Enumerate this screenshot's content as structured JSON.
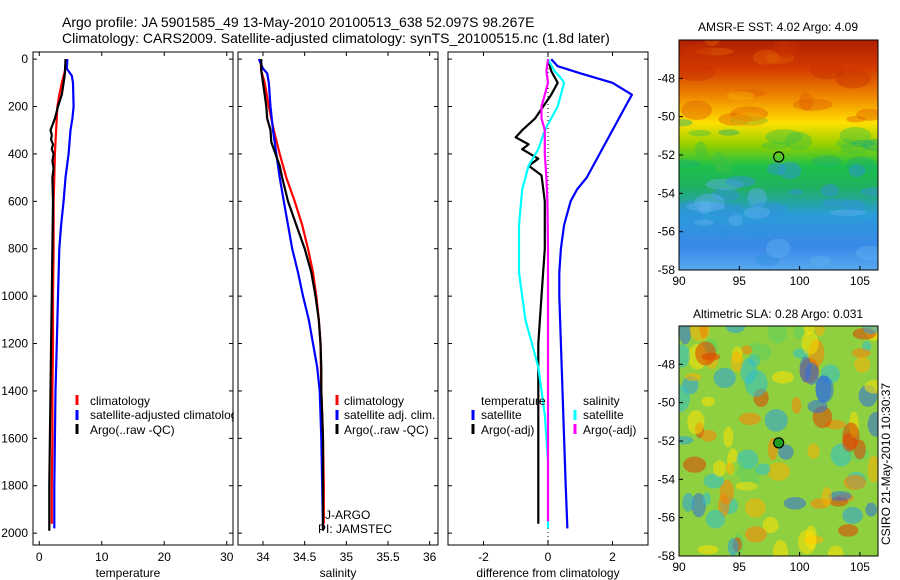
{
  "header": {
    "line1": "Argo profile: JA 5901585_49 13-May-2010 20100513_638 52.097S 98.267E",
    "line2": "Climatology: CARS2009. Satellite-adjusted climatology: synTS_20100515.nc (1.8d later)"
  },
  "colors": {
    "red": "#ff0000",
    "blue": "#0000ff",
    "black": "#000000",
    "cyan": "#00ffff",
    "magenta": "#ff00ff"
  },
  "chart_data": [
    {
      "type": "line",
      "name": "temperature-profile",
      "xlabel": "temperature",
      "ylabel": "",
      "xlim": [
        -1,
        31
      ],
      "ylim": [
        2050,
        -30
      ],
      "xticks": [
        0,
        10,
        20,
        30
      ],
      "yticks": [
        0,
        200,
        400,
        600,
        800,
        1000,
        1200,
        1400,
        1600,
        1800,
        2000
      ],
      "legend": [
        "climatology",
        "satellite-adjusted climatolog",
        "Argo(..raw -QC)"
      ],
      "series": [
        {
          "name": "climatology",
          "color": "red",
          "points": [
            [
              4.3,
              0
            ],
            [
              4.1,
              50
            ],
            [
              3.6,
              100
            ],
            [
              3.2,
              150
            ],
            [
              2.9,
              200
            ],
            [
              2.7,
              300
            ],
            [
              2.5,
              400
            ],
            [
              2.4,
              500
            ],
            [
              2.3,
              600
            ],
            [
              2.3,
              800
            ],
            [
              2.2,
              1000
            ],
            [
              2.2,
              1200
            ],
            [
              2.1,
              1400
            ],
            [
              2.1,
              1600
            ],
            [
              2.0,
              1800
            ],
            [
              2.0,
              1960
            ]
          ]
        },
        {
          "name": "satellite-adjusted climatology",
          "color": "blue",
          "points": [
            [
              4.5,
              0
            ],
            [
              4.4,
              40
            ],
            [
              5.2,
              70
            ],
            [
              5.4,
              100
            ],
            [
              5.5,
              200
            ],
            [
              5.3,
              250
            ],
            [
              5.0,
              300
            ],
            [
              4.7,
              400
            ],
            [
              4.2,
              500
            ],
            [
              3.9,
              600
            ],
            [
              3.5,
              700
            ],
            [
              3.2,
              800
            ],
            [
              3.0,
              1000
            ],
            [
              2.8,
              1200
            ],
            [
              2.6,
              1400
            ],
            [
              2.5,
              1600
            ],
            [
              2.4,
              1800
            ],
            [
              2.4,
              1980
            ]
          ]
        },
        {
          "name": "Argo(..raw -QC)",
          "color": "black",
          "points": [
            [
              4.2,
              0
            ],
            [
              4.1,
              60
            ],
            [
              3.9,
              100
            ],
            [
              3.6,
              150
            ],
            [
              3.0,
              200
            ],
            [
              2.5,
              250
            ],
            [
              1.8,
              300
            ],
            [
              2.0,
              320
            ],
            [
              1.9,
              340
            ],
            [
              2.2,
              360
            ],
            [
              2.0,
              380
            ],
            [
              2.3,
              400
            ],
            [
              2.1,
              430
            ],
            [
              2.3,
              460
            ],
            [
              2.1,
              500
            ],
            [
              2.2,
              600
            ],
            [
              2.1,
              800
            ],
            [
              2.0,
              1000
            ],
            [
              1.9,
              1200
            ],
            [
              1.8,
              1400
            ],
            [
              1.7,
              1600
            ],
            [
              1.6,
              1800
            ],
            [
              1.6,
              1990
            ]
          ]
        }
      ]
    },
    {
      "type": "line",
      "name": "salinity-profile",
      "xlabel": "salinity",
      "ylabel": "",
      "xlim": [
        33.7,
        36.1
      ],
      "ylim": [
        2050,
        -30
      ],
      "xticks": [
        34,
        34.5,
        35,
        35.5,
        36
      ],
      "legend": [
        "climatology",
        "satellite adj. clim.",
        "Argo(..raw -QC)"
      ],
      "annotation": [
        "J-ARGO",
        "PI: JAMSTEC"
      ],
      "series": [
        {
          "name": "climatology",
          "color": "red",
          "points": [
            [
              33.97,
              0
            ],
            [
              33.98,
              50
            ],
            [
              34.02,
              100
            ],
            [
              34.07,
              200
            ],
            [
              34.13,
              300
            ],
            [
              34.2,
              400
            ],
            [
              34.28,
              500
            ],
            [
              34.38,
              600
            ],
            [
              34.47,
              700
            ],
            [
              34.54,
              800
            ],
            [
              34.6,
              900
            ],
            [
              34.64,
              1000
            ],
            [
              34.67,
              1100
            ],
            [
              34.69,
              1200
            ],
            [
              34.7,
              1400
            ],
            [
              34.72,
              1600
            ],
            [
              34.73,
              1800
            ],
            [
              34.73,
              1960
            ]
          ]
        },
        {
          "name": "satellite adj. clim.",
          "color": "blue",
          "points": [
            [
              33.95,
              0
            ],
            [
              34.0,
              40
            ],
            [
              34.05,
              60
            ],
            [
              34.07,
              100
            ],
            [
              34.09,
              200
            ],
            [
              34.12,
              300
            ],
            [
              34.16,
              400
            ],
            [
              34.2,
              500
            ],
            [
              34.25,
              600
            ],
            [
              34.3,
              700
            ],
            [
              34.35,
              800
            ],
            [
              34.42,
              900
            ],
            [
              34.48,
              1000
            ],
            [
              34.55,
              1100
            ],
            [
              34.6,
              1200
            ],
            [
              34.65,
              1300
            ],
            [
              34.68,
              1400
            ],
            [
              34.7,
              1600
            ],
            [
              34.71,
              1800
            ],
            [
              34.72,
              1980
            ]
          ]
        },
        {
          "name": "Argo(..raw -QC)",
          "color": "black",
          "points": [
            [
              33.98,
              0
            ],
            [
              33.98,
              50
            ],
            [
              34.0,
              100
            ],
            [
              34.02,
              150
            ],
            [
              34.04,
              200
            ],
            [
              34.05,
              250
            ],
            [
              34.09,
              300
            ],
            [
              34.1,
              350
            ],
            [
              34.15,
              400
            ],
            [
              34.2,
              450
            ],
            [
              34.23,
              500
            ],
            [
              34.3,
              600
            ],
            [
              34.4,
              700
            ],
            [
              34.5,
              800
            ],
            [
              34.58,
              900
            ],
            [
              34.63,
              1000
            ],
            [
              34.67,
              1100
            ],
            [
              34.69,
              1200
            ],
            [
              34.7,
              1300
            ],
            [
              34.7,
              1400
            ],
            [
              34.71,
              1500
            ],
            [
              34.72,
              1600
            ],
            [
              34.72,
              1700
            ],
            [
              34.72,
              1800
            ],
            [
              34.72,
              1900
            ],
            [
              34.72,
              1990
            ]
          ]
        }
      ]
    },
    {
      "type": "line",
      "name": "difference-profile",
      "xlabel": "difference from climatology",
      "ylabel": "",
      "xlim": [
        -3.1,
        3.1
      ],
      "ylim": [
        2050,
        -30
      ],
      "xticks": [
        -2,
        0,
        2
      ],
      "legend_left_title": "temperature",
      "legend_right_title": "salinity",
      "legend_left": [
        "satellite",
        "Argo(-adj)"
      ],
      "legend_right": [
        "satellite",
        "Argo(-adj)"
      ],
      "series": [
        {
          "name": "temperature satellite",
          "color": "blue",
          "points": [
            [
              0.1,
              0
            ],
            [
              0.3,
              30
            ],
            [
              1.0,
              60
            ],
            [
              2.0,
              100
            ],
            [
              2.6,
              150
            ],
            [
              2.4,
              200
            ],
            [
              2.0,
              300
            ],
            [
              1.6,
              400
            ],
            [
              1.2,
              500
            ],
            [
              0.9,
              550
            ],
            [
              0.7,
              600
            ],
            [
              0.5,
              700
            ],
            [
              0.4,
              800
            ],
            [
              0.35,
              900
            ],
            [
              0.35,
              1000
            ],
            [
              0.4,
              1200
            ],
            [
              0.45,
              1400
            ],
            [
              0.5,
              1600
            ],
            [
              0.55,
              1800
            ],
            [
              0.6,
              1980
            ]
          ]
        },
        {
          "name": "temperature Argo(-adj)",
          "color": "black",
          "points": [
            [
              0.0,
              0
            ],
            [
              0.1,
              50
            ],
            [
              0.3,
              100
            ],
            [
              0.1,
              150
            ],
            [
              -0.4,
              250
            ],
            [
              -0.8,
              300
            ],
            [
              -1.0,
              330
            ],
            [
              -0.6,
              360
            ],
            [
              -0.8,
              380
            ],
            [
              -0.3,
              420
            ],
            [
              -0.6,
              450
            ],
            [
              -0.2,
              490
            ],
            [
              -0.1,
              600
            ],
            [
              -0.1,
              800
            ],
            [
              -0.2,
              1000
            ],
            [
              -0.3,
              1200
            ],
            [
              -0.3,
              1400
            ],
            [
              -0.3,
              1600
            ],
            [
              -0.3,
              1800
            ],
            [
              -0.3,
              1960
            ]
          ]
        },
        {
          "name": "salinity satellite",
          "color": "cyan",
          "points": [
            [
              0.0,
              0
            ],
            [
              0.2,
              50
            ],
            [
              0.4,
              80
            ],
            [
              0.5,
              100
            ],
            [
              0.4,
              150
            ],
            [
              0.3,
              200
            ],
            [
              0.1,
              250
            ],
            [
              -0.1,
              300
            ],
            [
              -0.3,
              380
            ],
            [
              -0.6,
              450
            ],
            [
              -0.8,
              550
            ],
            [
              -0.9,
              700
            ],
            [
              -0.9,
              900
            ],
            [
              -0.7,
              1100
            ],
            [
              -0.5,
              1200
            ],
            [
              -0.3,
              1300
            ],
            [
              -0.1,
              1500
            ],
            [
              0.0,
              1700
            ],
            [
              0.0,
              1900
            ],
            [
              0.0,
              1980
            ]
          ]
        },
        {
          "name": "salinity Argo(-adj)",
          "color": "magenta",
          "points": [
            [
              0.0,
              0
            ],
            [
              -0.05,
              50
            ],
            [
              0.0,
              100
            ],
            [
              -0.1,
              150
            ],
            [
              -0.2,
              200
            ],
            [
              -0.2,
              250
            ],
            [
              -0.1,
              300
            ],
            [
              -0.1,
              400
            ],
            [
              -0.05,
              500
            ],
            [
              -0.02,
              600
            ],
            [
              0.0,
              800
            ],
            [
              0.0,
              1000
            ],
            [
              0.0,
              1200
            ],
            [
              0.0,
              1400
            ],
            [
              0.0,
              1600
            ],
            [
              0.0,
              1800
            ],
            [
              0.0,
              1950
            ]
          ]
        }
      ]
    },
    {
      "type": "heatmap",
      "name": "sst-map",
      "title": "AMSR-E SST: 4.02 Argo: 4.09",
      "xlim": [
        90,
        106.5
      ],
      "ylim": [
        -58,
        -46
      ],
      "xticks": [
        90,
        95,
        100,
        105
      ],
      "yticks": [
        -48,
        -50,
        -52,
        -54,
        -56,
        -58
      ],
      "marker": {
        "lon": 98.267,
        "lat": -52.097
      }
    },
    {
      "type": "heatmap",
      "name": "sla-map",
      "title": "Altimetric SLA: 0.28 Argo: 0.031",
      "xlim": [
        90,
        106.5
      ],
      "ylim": [
        -58,
        -46
      ],
      "xticks": [
        90,
        95,
        100,
        105
      ],
      "yticks": [
        -48,
        -50,
        -52,
        -54,
        -56,
        -58
      ],
      "marker": {
        "lon": 98.267,
        "lat": -52.097
      }
    }
  ],
  "side_label": "CSIRO 21-May-2010 10:30:37"
}
